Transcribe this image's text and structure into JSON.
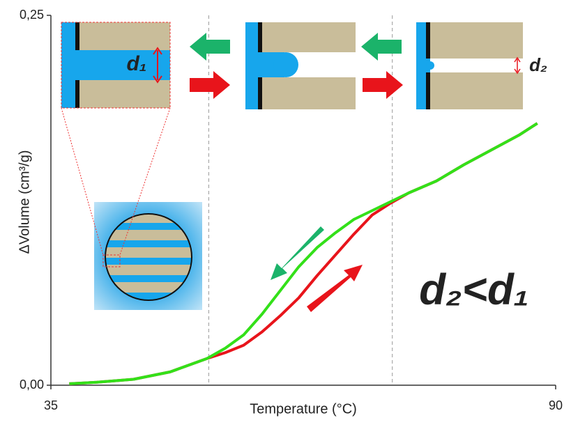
{
  "chart_data": {
    "type": "line",
    "xlabel": "Temperature (°C)",
    "ylabel": "ΔVolume (cm³/g)",
    "x": [
      37,
      40,
      44,
      48,
      52,
      54,
      56,
      58,
      60,
      62,
      64,
      66,
      68,
      70,
      72,
      74,
      77,
      80,
      83,
      86,
      88
    ],
    "series": [
      {
        "color": "#e8141b",
        "values": [
          0.001,
          0.002,
          0.004,
          0.009,
          0.018,
          0.022,
          0.027,
          0.036,
          0.047,
          0.059,
          0.074,
          0.088,
          0.102,
          0.115,
          0.123,
          0.13,
          0.138,
          0.149,
          0.159,
          0.169,
          0.177
        ]
      },
      {
        "color": "#33e019",
        "values": [
          0.001,
          0.002,
          0.004,
          0.009,
          0.018,
          0.025,
          0.034,
          0.048,
          0.064,
          0.08,
          0.093,
          0.103,
          0.112,
          0.118,
          0.124,
          0.13,
          0.138,
          0.149,
          0.159,
          0.169,
          0.177
        ]
      }
    ],
    "xlim": [
      35,
      90
    ],
    "ylim": [
      0,
      0.25
    ],
    "xticks": [
      {
        "value": 35,
        "label": "35"
      },
      {
        "value": 90,
        "label": "90"
      }
    ],
    "yticks": [
      {
        "value": 0,
        "label": "0,00"
      },
      {
        "value": 0.25,
        "label": "0,25"
      }
    ],
    "reference_lines": [
      52.2,
      72.2
    ],
    "annotation": "d₂<d₁",
    "labels": [
      "d₁",
      "d₂"
    ]
  }
}
